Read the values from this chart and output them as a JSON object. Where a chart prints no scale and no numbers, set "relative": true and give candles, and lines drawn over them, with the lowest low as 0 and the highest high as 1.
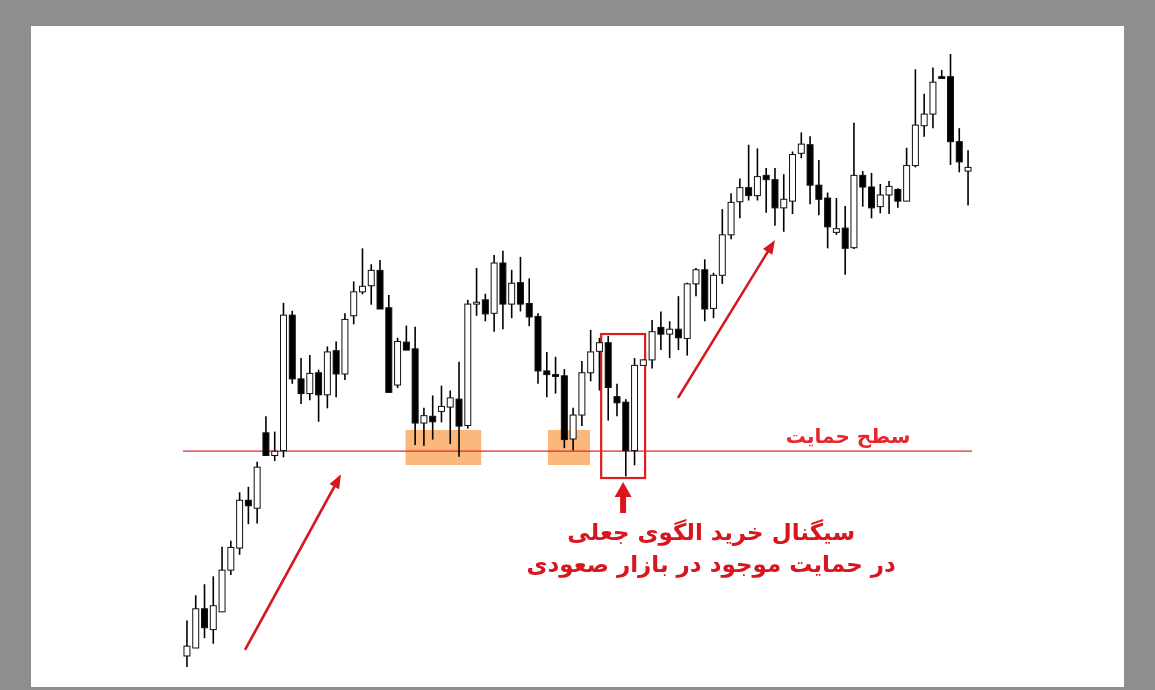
{
  "chart_data": {
    "type": "candlestick",
    "relative": true,
    "categories": [
      null,
      null,
      null,
      null,
      null,
      null,
      null,
      null,
      null,
      null,
      null,
      null,
      null,
      null,
      null,
      null,
      null,
      null,
      null,
      null,
      null,
      null,
      null,
      null,
      null,
      null,
      null,
      null,
      null,
      null,
      null,
      null,
      null,
      null,
      null,
      null,
      null,
      null,
      null,
      null,
      null,
      null,
      null,
      null,
      null,
      null,
      null,
      null,
      null,
      null,
      null,
      null,
      null,
      null,
      null,
      null,
      null,
      null,
      null,
      null,
      null,
      null,
      null,
      null,
      null,
      null,
      null,
      null,
      null,
      null,
      null,
      null,
      null,
      null,
      null,
      null,
      null,
      null,
      null,
      null,
      null,
      null,
      null,
      null,
      null,
      null,
      null,
      null,
      null,
      null
    ],
    "ohlc": [
      [
        0.018,
        0.076,
        0,
        0.034
      ],
      [
        0.031,
        0.117,
        0.031,
        0.095
      ],
      [
        0.095,
        0.135,
        0.047,
        0.064
      ],
      [
        0.061,
        0.148,
        0.038,
        0.1
      ],
      [
        0.09,
        0.196,
        0.09,
        0.158
      ],
      [
        0.158,
        0.206,
        0.15,
        0.195
      ],
      [
        0.194,
        0.285,
        0.183,
        0.272
      ],
      [
        0.272,
        0.294,
        0.233,
        0.263
      ],
      [
        0.259,
        0.335,
        0.234,
        0.326
      ],
      [
        0.382,
        0.409,
        0.345,
        0.345
      ],
      [
        0.345,
        0.384,
        0.336,
        0.352
      ],
      [
        0.353,
        0.594,
        0.342,
        0.574
      ],
      [
        0.574,
        0.581,
        0.462,
        0.47
      ],
      [
        0.47,
        0.504,
        0.429,
        0.446
      ],
      [
        0.446,
        0.509,
        0.435,
        0.479
      ],
      [
        0.48,
        0.485,
        0.4,
        0.444
      ],
      [
        0.444,
        0.523,
        0.422,
        0.514
      ],
      [
        0.516,
        0.531,
        0.44,
        0.478
      ],
      [
        0.478,
        0.577,
        0.468,
        0.567
      ],
      [
        0.573,
        0.629,
        0.559,
        0.612
      ],
      [
        0.612,
        0.683,
        0.608,
        0.621
      ],
      [
        0.622,
        0.657,
        0.591,
        0.647
      ],
      [
        0.647,
        0.664,
        0.584,
        0.584
      ],
      [
        0.586,
        0.607,
        0.447,
        0.448
      ],
      [
        0.46,
        0.537,
        0.455,
        0.531
      ],
      [
        0.53,
        0.557,
        0.517,
        0.517
      ],
      [
        0.519,
        0.555,
        0.362,
        0.398
      ],
      [
        0.398,
        0.423,
        0.361,
        0.41
      ],
      [
        0.409,
        0.443,
        0.371,
        0.4
      ],
      [
        0.417,
        0.459,
        0.399,
        0.425
      ],
      [
        0.424,
        0.451,
        0.364,
        0.439
      ],
      [
        0.437,
        0.498,
        0.343,
        0.393
      ],
      [
        0.394,
        0.599,
        0.389,
        0.592
      ],
      [
        0.592,
        0.651,
        0.573,
        0.595
      ],
      [
        0.599,
        0.609,
        0.564,
        0.576
      ],
      [
        0.577,
        0.672,
        0.547,
        0.659
      ],
      [
        0.659,
        0.679,
        0.551,
        0.592
      ],
      [
        0.592,
        0.648,
        0.569,
        0.626
      ],
      [
        0.627,
        0.669,
        0.58,
        0.592
      ],
      [
        0.593,
        0.634,
        0.556,
        0.571
      ],
      [
        0.572,
        0.577,
        0.462,
        0.483
      ],
      [
        0.483,
        0.514,
        0.44,
        0.477
      ],
      [
        0.477,
        0.506,
        0.446,
        0.474
      ],
      [
        0.475,
        0.486,
        0.357,
        0.371
      ],
      [
        0.372,
        0.423,
        0.353,
        0.411
      ],
      [
        0.411,
        0.499,
        0.393,
        0.48
      ],
      [
        0.48,
        0.55,
        0.466,
        0.514
      ],
      [
        0.515,
        0.537,
        0.451,
        0.529
      ],
      [
        0.529,
        0.54,
        0.402,
        0.456
      ],
      [
        0.441,
        0.462,
        0.409,
        0.431
      ],
      [
        0.432,
        0.437,
        0.311,
        0.353
      ],
      [
        0.353,
        0.504,
        0.329,
        0.492
      ],
      [
        0.492,
        0.502,
        0.492,
        0.501
      ],
      [
        0.501,
        0.566,
        0.487,
        0.547
      ],
      [
        0.554,
        0.58,
        0.517,
        0.543
      ],
      [
        0.543,
        0.564,
        0.504,
        0.551
      ],
      [
        0.551,
        0.605,
        0.517,
        0.537
      ],
      [
        0.536,
        0.627,
        0.508,
        0.625
      ],
      [
        0.625,
        0.651,
        0.605,
        0.648
      ],
      [
        0.648,
        0.665,
        0.564,
        0.584
      ],
      [
        0.585,
        0.643,
        0.569,
        0.639
      ],
      [
        0.639,
        0.747,
        0.625,
        0.705
      ],
      [
        0.705,
        0.773,
        0.698,
        0.758
      ],
      [
        0.759,
        0.797,
        0.732,
        0.782
      ],
      [
        0.782,
        0.852,
        0.761,
        0.769
      ],
      [
        0.769,
        0.846,
        0.761,
        0.8
      ],
      [
        0.802,
        0.814,
        0.741,
        0.795
      ],
      [
        0.795,
        0.814,
        0.72,
        0.749
      ],
      [
        0.749,
        0.804,
        0.71,
        0.763
      ],
      [
        0.76,
        0.841,
        0.739,
        0.836
      ],
      [
        0.838,
        0.872,
        0.83,
        0.853
      ],
      [
        0.852,
        0.866,
        0.755,
        0.786
      ],
      [
        0.786,
        0.827,
        0.737,
        0.763
      ],
      [
        0.765,
        0.774,
        0.683,
        0.718
      ],
      [
        0.709,
        0.765,
        0.705,
        0.715
      ],
      [
        0.716,
        0.752,
        0.64,
        0.683
      ],
      [
        0.684,
        0.888,
        0.682,
        0.802
      ],
      [
        0.802,
        0.809,
        0.751,
        0.783
      ],
      [
        0.783,
        0.806,
        0.732,
        0.749
      ],
      [
        0.751,
        0.788,
        0.74,
        0.77
      ],
      [
        0.77,
        0.793,
        0.739,
        0.784
      ],
      [
        0.779,
        0.781,
        0.749,
        0.76
      ],
      [
        0.76,
        0.847,
        0.76,
        0.818
      ],
      [
        0.818,
        0.975,
        0.815,
        0.884
      ],
      [
        0.883,
        0.935,
        0.865,
        0.902
      ],
      [
        0.902,
        0.978,
        0.879,
        0.954
      ],
      [
        0.963,
        0.974,
        0.96,
        0.96
      ],
      [
        0.963,
        1.0,
        0.819,
        0.857
      ],
      [
        0.857,
        0.879,
        0.807,
        0.824
      ],
      [
        0.809,
        0.843,
        0.753,
        0.815
      ]
    ],
    "ref_lines": [
      {
        "axis": "y",
        "value": 0.352,
        "label": "سطح حمایت",
        "color": "#e8252b"
      }
    ],
    "annotations": [
      "سیگنال خرید الگوی جعلی\nدر حمایت موجود در بازار صعودی"
    ]
  }
}
